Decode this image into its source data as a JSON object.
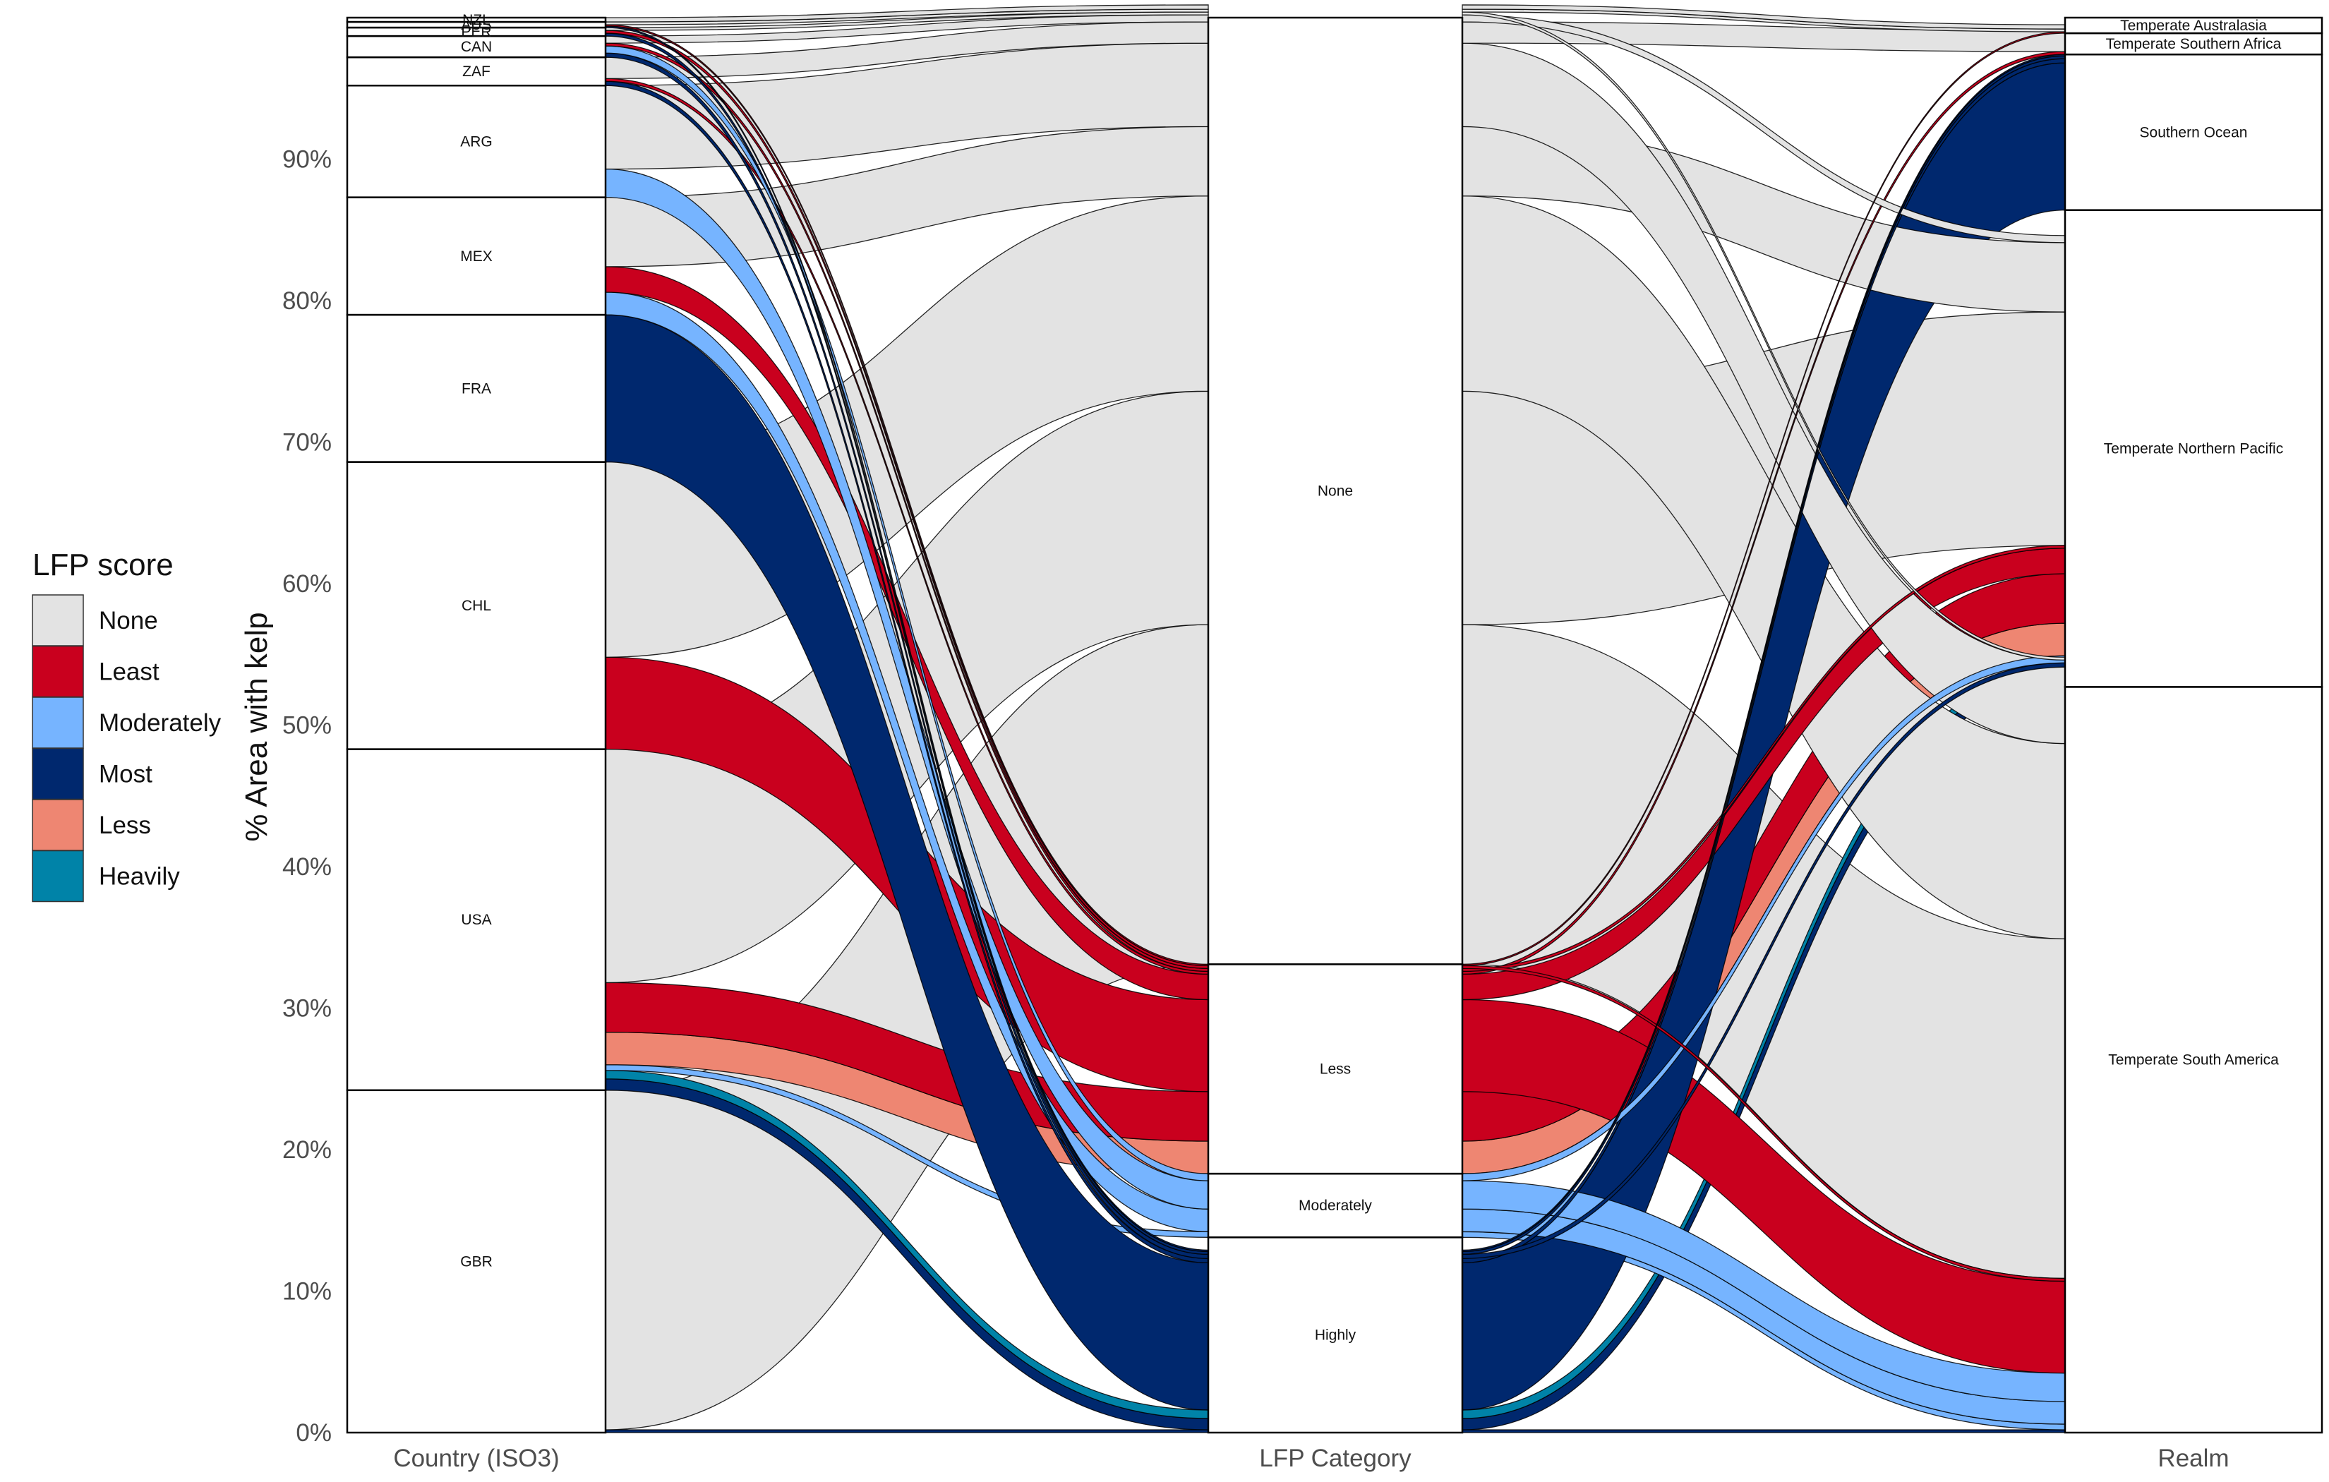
{
  "legend": {
    "title": "LFP score",
    "items": [
      {
        "label": "None",
        "color": "#E3E3E3"
      },
      {
        "label": "Least",
        "color": "#C9001E"
      },
      {
        "label": "Moderately",
        "color": "#76B4FF"
      },
      {
        "label": "Most",
        "color": "#00286E"
      },
      {
        "label": "Less",
        "color": "#EE8672"
      },
      {
        "label": "Heavily",
        "color": "#0083A8"
      }
    ]
  },
  "chart_data": {
    "type": "alluvial",
    "ylabel": "% Area with kelp",
    "ylim": [
      0,
      100
    ],
    "yticks": [
      "0%",
      "10%",
      "20%",
      "30%",
      "40%",
      "50%",
      "60%",
      "70%",
      "80%",
      "90%"
    ],
    "axes": [
      "Country (ISO3)",
      "LFP Category",
      "Realm"
    ],
    "strata": {
      "country": [
        {
          "label": "GBR",
          "value": 24.2
        },
        {
          "label": "USA",
          "value": 24.1
        },
        {
          "label": "CHL",
          "value": 20.3
        },
        {
          "label": "FRA",
          "value": 10.4
        },
        {
          "label": "MEX",
          "value": 8.3
        },
        {
          "label": "ARG",
          "value": 7.9
        },
        {
          "label": "ZAF",
          "value": 2.0
        },
        {
          "label": "CAN",
          "value": 1.5
        },
        {
          "label": "PER",
          "value": 0.6
        },
        {
          "label": "AUS",
          "value": 0.4
        },
        {
          "label": "NZL",
          "value": 0.3
        }
      ],
      "lfp": [
        {
          "label": "Highly",
          "value": 13.8
        },
        {
          "label": "Moderately",
          "value": 4.5
        },
        {
          "label": "Less",
          "value": 14.8
        },
        {
          "label": "None",
          "value": 66.9
        }
      ],
      "realm": [
        {
          "label": "Temperate South America",
          "value": 52.7
        },
        {
          "label": "Temperate Northern Pacific",
          "value": 33.7
        },
        {
          "label": "Southern Ocean",
          "value": 11.0
        },
        {
          "label": "Temperate Southern Africa",
          "value": 1.5
        },
        {
          "label": "Temperate Australasia",
          "value": 1.1
        }
      ]
    },
    "flows": [
      {
        "country": "GBR",
        "lfp": "Highly",
        "realm": "Temperate South America",
        "score": "Most",
        "value": 0.2
      },
      {
        "country": "GBR",
        "lfp": "None",
        "realm": "Temperate South America",
        "score": "None",
        "value": 24.0
      },
      {
        "country": "USA",
        "lfp": "Highly",
        "realm": "Temperate Northern Pacific",
        "score": "Most",
        "value": 0.8
      },
      {
        "country": "USA",
        "lfp": "Highly",
        "realm": "Temperate Northern Pacific",
        "score": "Heavily",
        "value": 0.6
      },
      {
        "country": "USA",
        "lfp": "Moderately",
        "realm": "Temperate South America",
        "score": "Moderately",
        "value": 0.4
      },
      {
        "country": "USA",
        "lfp": "Less",
        "realm": "Temperate Northern Pacific",
        "score": "Less",
        "value": 2.3
      },
      {
        "country": "USA",
        "lfp": "Less",
        "realm": "Temperate Northern Pacific",
        "score": "Least",
        "value": 3.5
      },
      {
        "country": "USA",
        "lfp": "None",
        "realm": "Temperate Northern Pacific",
        "score": "None",
        "value": 16.5
      },
      {
        "country": "CHL",
        "lfp": "Less",
        "realm": "Temperate South America",
        "score": "Least",
        "value": 6.5
      },
      {
        "country": "CHL",
        "lfp": "None",
        "realm": "Temperate South America",
        "score": "None",
        "value": 13.8
      },
      {
        "country": "FRA",
        "lfp": "Highly",
        "realm": "Southern Ocean",
        "score": "Most",
        "value": 10.4
      },
      {
        "country": "MEX",
        "lfp": "Moderately",
        "realm": "Temperate South America",
        "score": "Moderately",
        "value": 1.6
      },
      {
        "country": "MEX",
        "lfp": "Less",
        "realm": "Temperate Northern Pacific",
        "score": "Least",
        "value": 1.8
      },
      {
        "country": "MEX",
        "lfp": "None",
        "realm": "Temperate Northern Pacific",
        "score": "None",
        "value": 4.9
      },
      {
        "country": "ARG",
        "lfp": "Moderately",
        "realm": "Temperate South America",
        "score": "Moderately",
        "value": 2.0
      },
      {
        "country": "ARG",
        "lfp": "None",
        "realm": "Temperate South America",
        "score": "None",
        "value": 5.9
      },
      {
        "country": "ZAF",
        "lfp": "Highly",
        "realm": "Southern Ocean",
        "score": "Most",
        "value": 0.3
      },
      {
        "country": "ZAF",
        "lfp": "Less",
        "realm": "Temperate Southern Africa",
        "score": "Least",
        "value": 0.2
      },
      {
        "country": "ZAF",
        "lfp": "None",
        "realm": "Temperate Southern Africa",
        "score": "None",
        "value": 1.5
      },
      {
        "country": "CAN",
        "lfp": "Highly",
        "realm": "Temperate Northern Pacific",
        "score": "Most",
        "value": 0.3
      },
      {
        "country": "CAN",
        "lfp": "Moderately",
        "realm": "Temperate Northern Pacific",
        "score": "Moderately",
        "value": 0.5
      },
      {
        "country": "CAN",
        "lfp": "Less",
        "realm": "Temperate Northern Pacific",
        "score": "Least",
        "value": 0.2
      },
      {
        "country": "CAN",
        "lfp": "None",
        "realm": "Temperate Northern Pacific",
        "score": "None",
        "value": 0.5
      },
      {
        "country": "PER",
        "lfp": "Highly",
        "realm": "Southern Ocean",
        "score": "Most",
        "value": 0.2
      },
      {
        "country": "PER",
        "lfp": "Less",
        "realm": "Temperate South America",
        "score": "Least",
        "value": 0.2
      },
      {
        "country": "PER",
        "lfp": "None",
        "realm": "Temperate South America",
        "score": "None",
        "value": 0.2
      },
      {
        "country": "AUS",
        "lfp": "Highly",
        "realm": "Southern Ocean",
        "score": "Most",
        "value": 0.1
      },
      {
        "country": "AUS",
        "lfp": "Less",
        "realm": "Temperate Australasia",
        "score": "Least",
        "value": 0.1
      },
      {
        "country": "AUS",
        "lfp": "None",
        "realm": "Temperate Australasia",
        "score": "None",
        "value": 0.2
      },
      {
        "country": "NZL",
        "lfp": "None",
        "realm": "Temperate Australasia",
        "score": "None",
        "value": 0.3
      }
    ]
  }
}
